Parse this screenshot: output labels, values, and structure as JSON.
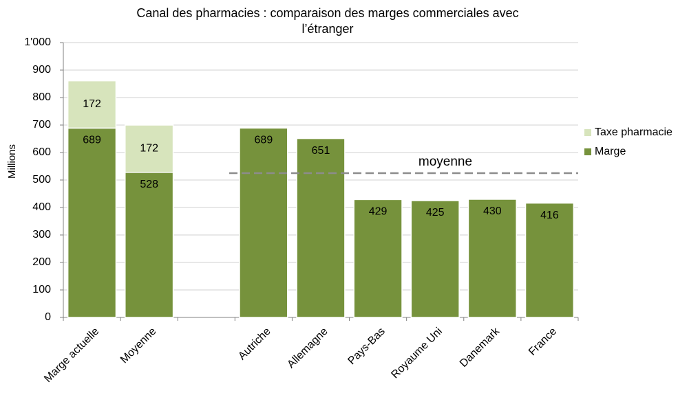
{
  "chart_data": {
    "type": "bar",
    "stacked": true,
    "title": [
      "Canal des pharmacies : comparaison des marges commerciales avec",
      "l’étranger"
    ],
    "ylabel": "Millions",
    "categories": [
      "Marge actuelle",
      "Moyenne",
      null,
      "Autriche",
      "Allemagne",
      "Pays-Bas",
      "Royaume Uni",
      "Danemark",
      "France"
    ],
    "series": [
      {
        "name": "Marge",
        "color": "#76923c",
        "values": [
          689,
          528,
          null,
          689,
          651,
          429,
          425,
          430,
          416
        ]
      },
      {
        "name": "Taxe pharmacie",
        "color": "#d7e4bc",
        "values": [
          172,
          172,
          null,
          null,
          null,
          null,
          null,
          null,
          null
        ]
      }
    ],
    "reference_line": {
      "label": "moyenne",
      "value": 525,
      "color": "#8c8c8c"
    },
    "ylim": [
      0,
      1000
    ],
    "yticks": [
      0,
      100,
      200,
      300,
      400,
      500,
      600,
      700,
      800,
      900,
      {
        "value": 1000,
        "label": "1'000"
      }
    ],
    "grid": true,
    "legend": "right"
  }
}
